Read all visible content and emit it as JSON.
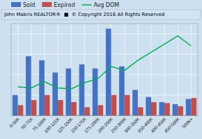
{
  "chart_data": {
    "type": "bar",
    "title": "John Makris REALTOR®  ■  © Copyright 2016 All Rights Reserved",
    "categories": [
      "0-50K",
      "50-75K",
      "75-100K",
      "100-125K",
      "125-150K",
      "150-175K",
      "175-200K",
      "200-250K",
      "250-300K",
      "300-350K",
      "350-400K",
      "400-450K",
      "450-500K",
      "500K+"
    ],
    "series": [
      {
        "name": "Sold",
        "type": "bar",
        "color": "#4472c4",
        "values": [
          20,
          58,
          54,
          42,
          46,
          50,
          46,
          85,
          48,
          25,
          18,
          13,
          11,
          16
        ]
      },
      {
        "name": "Expired",
        "type": "bar",
        "color": "#c0504d",
        "values": [
          10,
          15,
          20,
          15,
          13,
          8,
          10,
          20,
          20,
          8,
          13,
          12,
          9,
          17
        ]
      },
      {
        "name": "Avg DOM",
        "type": "line",
        "axis": "y2",
        "color": "#00b050",
        "values": [
          28,
          27,
          33,
          27,
          26,
          32,
          36,
          48,
          44,
          54,
          62,
          70,
          78,
          68
        ]
      }
    ],
    "ylim": [
      0,
      90
    ],
    "yticks": [
      0,
      20,
      40,
      60,
      80
    ],
    "y2lim": [
      0,
      90
    ],
    "grid": true,
    "legend": "top",
    "tick_labels": "x"
  }
}
